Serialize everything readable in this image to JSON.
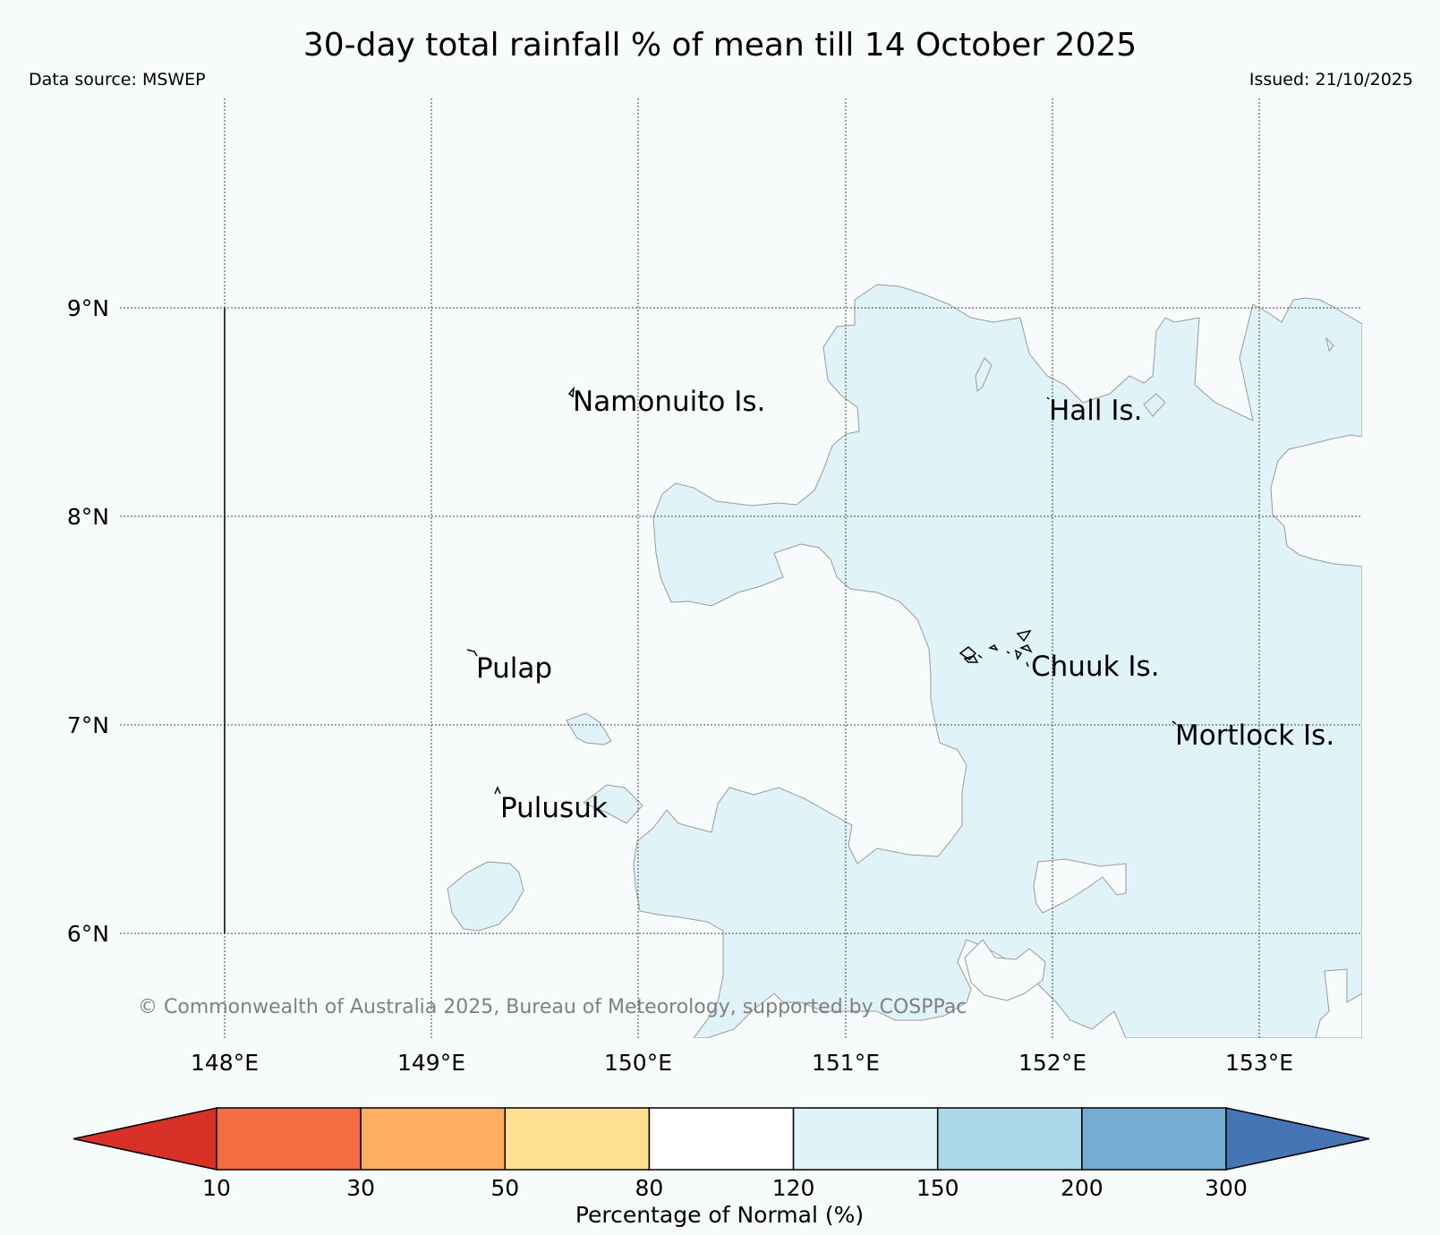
{
  "header": {
    "title": "30-day total rainfall % of mean till 14 October 2025",
    "data_source": "Data source: MSWEP",
    "issued": "Issued: 21/10/2025"
  },
  "map": {
    "lat_labels": [
      "9°N",
      "8°N",
      "7°N",
      "6°N"
    ],
    "lon_labels": [
      "148°E",
      "149°E",
      "150°E",
      "151°E",
      "152°E",
      "153°E"
    ],
    "places": {
      "namonuito": "Namonuito Is.",
      "hall": "Hall Is.",
      "pulap": "Pulap",
      "chuuk": "Chuuk Is.",
      "mortlock": "Mortlock Is.",
      "pulusuk": "Pulusuk"
    },
    "copyright": "© Commonwealth of Australia 2025, Bureau of Meteorology, supported by COSPPac",
    "colors": {
      "above_normal_fill": "#e0f3f8",
      "background": "#f7fbfc"
    }
  },
  "legend": {
    "title": "Percentage of Normal (%)",
    "ticks": [
      "10",
      "30",
      "50",
      "80",
      "120",
      "150",
      "200",
      "300"
    ],
    "colors": [
      "#d73027",
      "#f46d43",
      "#fdae61",
      "#fee090",
      "#ffffff",
      "#e0f3f8",
      "#abd9e9",
      "#74add1",
      "#4575b4"
    ]
  }
}
